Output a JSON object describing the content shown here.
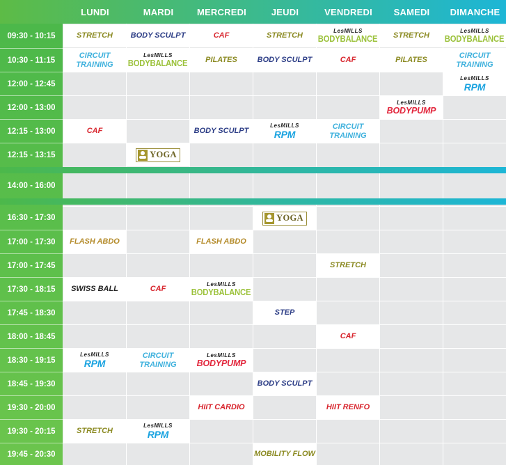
{
  "days": [
    "LUNDI",
    "MARDI",
    "MERCREDI",
    "JEUDI",
    "VENDREDI",
    "SAMEDI",
    "DIMANCHE"
  ],
  "times": [
    "09:30 - 10:15",
    "10:30 - 11:15",
    "12:00 - 12:45",
    "12:00 - 13:00",
    "12:15 - 13:00",
    "12:15 - 13:15",
    "14:00 - 16:00",
    "16:30 - 17:30",
    "17:00 - 17:30",
    "17:00 - 17:45",
    "17:30 - 18:15",
    "17:45 - 18:30",
    "18:00 - 18:45",
    "18:30 - 19:15",
    "18:45 - 19:30",
    "19:30 - 20:00",
    "19:30 - 20:15",
    "19:45 - 20:30"
  ],
  "brand": {
    "lesmills": "LesMILLS",
    "yoga": "YOGA"
  },
  "classes": {
    "stretch": "STRETCH",
    "body_sculpt": "BODY SCULPT",
    "caf": "CAF",
    "circuit_training": "CIRCUIT TRAINING",
    "pilates": "PILATES",
    "bodybalance": "BODYBALANCE",
    "rpm": "RPM",
    "bodypump": "BODYPUMP",
    "flash_abdo": "FLASH ABDO",
    "swiss_ball": "SWISS BALL",
    "step": "STEP",
    "hiit_cardio": "HIIT CARDIO",
    "hiit_renfo": "HIIT RENFO",
    "mobility_flow": "MOBILITY FLOW"
  },
  "schedule": [
    {
      "time": "09:30 - 10:15",
      "day": "LUNDI",
      "class": "STRETCH"
    },
    {
      "time": "09:30 - 10:15",
      "day": "MARDI",
      "class": "BODY SCULPT"
    },
    {
      "time": "09:30 - 10:15",
      "day": "MERCREDI",
      "class": "CAF"
    },
    {
      "time": "09:30 - 10:15",
      "day": "JEUDI",
      "class": "STRETCH"
    },
    {
      "time": "09:30 - 10:15",
      "day": "VENDREDI",
      "class": "BODYBALANCE"
    },
    {
      "time": "09:30 - 10:15",
      "day": "SAMEDI",
      "class": "STRETCH"
    },
    {
      "time": "09:30 - 10:15",
      "day": "DIMANCHE",
      "class": "BODYBALANCE"
    },
    {
      "time": "10:30 - 11:15",
      "day": "LUNDI",
      "class": "CIRCUIT TRAINING"
    },
    {
      "time": "10:30 - 11:15",
      "day": "MARDI",
      "class": "BODYBALANCE"
    },
    {
      "time": "10:30 - 11:15",
      "day": "MERCREDI",
      "class": "PILATES"
    },
    {
      "time": "10:30 - 11:15",
      "day": "JEUDI",
      "class": "BODY SCULPT"
    },
    {
      "time": "10:30 - 11:15",
      "day": "VENDREDI",
      "class": "CAF"
    },
    {
      "time": "10:30 - 11:15",
      "day": "SAMEDI",
      "class": "PILATES"
    },
    {
      "time": "10:30 - 11:15",
      "day": "DIMANCHE",
      "class": "CIRCUIT TRAINING"
    },
    {
      "time": "12:00 - 12:45",
      "day": "DIMANCHE",
      "class": "RPM"
    },
    {
      "time": "12:00 - 13:00",
      "day": "SAMEDI",
      "class": "BODYPUMP"
    },
    {
      "time": "12:15 - 13:00",
      "day": "LUNDI",
      "class": "CAF"
    },
    {
      "time": "12:15 - 13:00",
      "day": "MERCREDI",
      "class": "BODY SCULPT"
    },
    {
      "time": "12:15 - 13:00",
      "day": "JEUDI",
      "class": "RPM"
    },
    {
      "time": "12:15 - 13:00",
      "day": "VENDREDI",
      "class": "CIRCUIT TRAINING"
    },
    {
      "time": "12:15 - 13:15",
      "day": "MARDI",
      "class": "YOGA"
    },
    {
      "time": "16:30 - 17:30",
      "day": "JEUDI",
      "class": "YOGA"
    },
    {
      "time": "17:00 - 17:30",
      "day": "LUNDI",
      "class": "FLASH ABDO"
    },
    {
      "time": "17:00 - 17:30",
      "day": "MERCREDI",
      "class": "FLASH ABDO"
    },
    {
      "time": "17:00 - 17:45",
      "day": "VENDREDI",
      "class": "STRETCH"
    },
    {
      "time": "17:30 - 18:15",
      "day": "LUNDI",
      "class": "SWISS BALL"
    },
    {
      "time": "17:30 - 18:15",
      "day": "MARDI",
      "class": "CAF"
    },
    {
      "time": "17:30 - 18:15",
      "day": "MERCREDI",
      "class": "BODYBALANCE"
    },
    {
      "time": "17:45 - 18:30",
      "day": "JEUDI",
      "class": "STEP"
    },
    {
      "time": "18:00 - 18:45",
      "day": "VENDREDI",
      "class": "CAF"
    },
    {
      "time": "18:30 - 19:15",
      "day": "LUNDI",
      "class": "RPM"
    },
    {
      "time": "18:30 - 19:15",
      "day": "MARDI",
      "class": "CIRCUIT TRAINING"
    },
    {
      "time": "18:30 - 19:15",
      "day": "MERCREDI",
      "class": "BODYPUMP"
    },
    {
      "time": "18:45 - 19:30",
      "day": "JEUDI",
      "class": "BODY SCULPT"
    },
    {
      "time": "19:30 - 20:00",
      "day": "MERCREDI",
      "class": "HIIT CARDIO"
    },
    {
      "time": "19:30 - 20:00",
      "day": "VENDREDI",
      "class": "HIIT RENFO"
    },
    {
      "time": "19:30 - 20:15",
      "day": "LUNDI",
      "class": "STRETCH"
    },
    {
      "time": "19:30 - 20:15",
      "day": "MARDI",
      "class": "RPM"
    },
    {
      "time": "19:45 - 20:30",
      "day": "JEUDI",
      "class": "MOBILITY FLOW"
    }
  ],
  "colors": {
    "header_start": "#5dbb46",
    "header_end": "#1db6d6",
    "grid_bg": "#e6e7e8",
    "stretch": "#8b8a22",
    "body_sculpt": "#2c3d86",
    "caf": "#d8262e",
    "circuit_training": "#3fb1dd",
    "bodybalance": "#9cc23c",
    "rpm": "#1aa3e0",
    "bodypump": "#e2263c"
  }
}
